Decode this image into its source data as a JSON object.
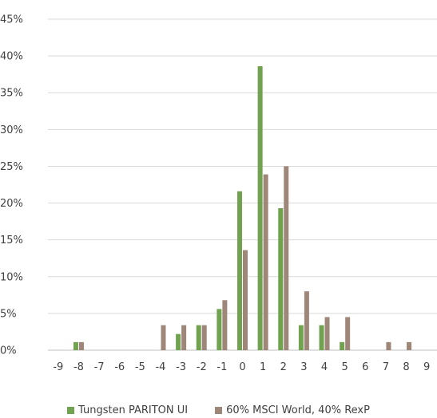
{
  "chart_data": {
    "type": "bar",
    "title": "",
    "xlabel": "",
    "ylabel": "",
    "categories": [
      "-9",
      "-8",
      "-7",
      "-6",
      "-5",
      "-4",
      "-3",
      "-2",
      "-1",
      "0",
      "1",
      "2",
      "3",
      "4",
      "5",
      "6",
      "7",
      "8",
      "9"
    ],
    "y_ticks": [
      "0%",
      "5%",
      "10%",
      "15%",
      "20%",
      "25%",
      "30%",
      "35%",
      "40%",
      "45%"
    ],
    "ylim": [
      0,
      45
    ],
    "grid": true,
    "legend_position": "bottom",
    "series": [
      {
        "name": "Tungsten PARITON UI",
        "color": "#70a250",
        "values": [
          0,
          1.1,
          0,
          0,
          0,
          0,
          2.2,
          3.4,
          5.6,
          21.6,
          38.6,
          19.3,
          3.4,
          3.4,
          1.1,
          0,
          0,
          0,
          0
        ]
      },
      {
        "name": "60% MSCI World, 40% RexP",
        "color": "#9e8679",
        "values": [
          0,
          1.1,
          0,
          0,
          0,
          3.4,
          3.4,
          3.4,
          6.8,
          13.6,
          23.9,
          25.0,
          8.0,
          4.5,
          4.5,
          0,
          1.1,
          1.1,
          0
        ]
      }
    ]
  }
}
